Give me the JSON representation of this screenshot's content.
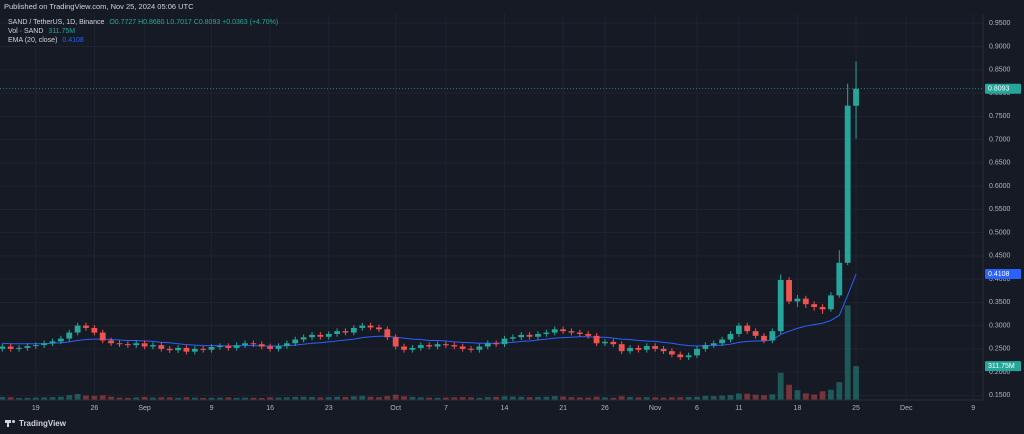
{
  "header": "Published on TradingView.com, Nov 25, 2024 05:06 UTC",
  "footer_brand": "TradingView",
  "chart_data": {
    "type": "candlestick",
    "legend_lines": {
      "symbol": "SAND / TetherUS, 1D, Binance",
      "ohlc": "O0.7727 H0.8680 L0.7017 C0.8093 +0.0363 (+4.70%)",
      "volume_name": "Vol · SAND",
      "volume_value": "311.75M",
      "ema_name": "EMA (20, close)",
      "ema_value": "0.4108"
    },
    "categories": [
      null,
      null,
      null,
      null,
      "19",
      null,
      null,
      null,
      null,
      null,
      null,
      "26",
      null,
      null,
      null,
      null,
      null,
      "Sep",
      null,
      null,
      null,
      null,
      null,
      null,
      null,
      "9",
      null,
      null,
      null,
      null,
      null,
      null,
      "16",
      null,
      null,
      null,
      null,
      null,
      null,
      "23",
      null,
      null,
      null,
      null,
      null,
      null,
      null,
      "Oct",
      null,
      null,
      null,
      null,
      null,
      "7",
      null,
      null,
      null,
      null,
      null,
      null,
      "14",
      null,
      null,
      null,
      null,
      null,
      null,
      "21",
      null,
      null,
      null,
      null,
      "26",
      null,
      null,
      null,
      null,
      null,
      "Nov",
      null,
      null,
      null,
      null,
      "6",
      null,
      null,
      null,
      null,
      "11",
      null,
      null,
      null,
      null,
      null,
      null,
      "18",
      null,
      null,
      null,
      null,
      null,
      null,
      "25",
      null,
      null,
      null,
      null,
      null,
      "Dec",
      null,
      null,
      null,
      null,
      null,
      null,
      null,
      "9"
    ],
    "series": [
      {
        "name": "SAND / TetherUS, 1D, Binance",
        "up_color": "#26a69a",
        "down_color": "#ef5350",
        "open": [
          0.25,
          0.255,
          0.25,
          0.252,
          0.256,
          0.258,
          0.262,
          0.266,
          0.272,
          0.285,
          0.3,
          0.295,
          0.285,
          0.268,
          0.262,
          0.26,
          0.258,
          0.262,
          0.255,
          0.258,
          0.25,
          0.247,
          0.252,
          0.244,
          0.25,
          0.248,
          0.254,
          0.256,
          0.252,
          0.258,
          0.262,
          0.26,
          0.255,
          0.25,
          0.256,
          0.262,
          0.27,
          0.275,
          0.28,
          0.276,
          0.282,
          0.288,
          0.285,
          0.295,
          0.3,
          0.296,
          0.292,
          0.275,
          0.255,
          0.248,
          0.252,
          0.258,
          0.255,
          0.26,
          0.258,
          0.255,
          0.25,
          0.248,
          0.255,
          0.262,
          0.26,
          0.272,
          0.275,
          0.28,
          0.276,
          0.282,
          0.285,
          0.292,
          0.288,
          0.285,
          0.282,
          0.278,
          0.262,
          0.265,
          0.26,
          0.245,
          0.252,
          0.248,
          0.256,
          0.25,
          0.245,
          0.238,
          0.232,
          0.236,
          0.25,
          0.258,
          0.262,
          0.27,
          0.282,
          0.3,
          0.288,
          0.278,
          0.268,
          0.288,
          0.398,
          0.352,
          0.358,
          0.346,
          0.34,
          0.335,
          0.365,
          0.435,
          0.7727,
          null,
          null,
          null,
          null,
          null,
          null,
          null,
          null,
          null,
          null,
          null,
          null,
          null,
          null
        ],
        "high": [
          0.261,
          0.261,
          0.258,
          0.262,
          0.264,
          0.268,
          0.272,
          0.278,
          0.291,
          0.306,
          0.306,
          0.301,
          0.291,
          0.274,
          0.268,
          0.266,
          0.268,
          0.268,
          0.264,
          0.264,
          0.256,
          0.258,
          0.258,
          0.256,
          0.256,
          0.26,
          0.262,
          0.262,
          0.264,
          0.268,
          0.268,
          0.266,
          0.261,
          0.262,
          0.268,
          0.276,
          0.281,
          0.286,
          0.286,
          0.288,
          0.294,
          0.294,
          0.301,
          0.306,
          0.306,
          0.302,
          0.298,
          0.281,
          0.261,
          0.258,
          0.264,
          0.264,
          0.266,
          0.266,
          0.264,
          0.261,
          0.256,
          0.261,
          0.268,
          0.268,
          0.278,
          0.281,
          0.286,
          0.286,
          0.288,
          0.291,
          0.298,
          0.298,
          0.294,
          0.291,
          0.288,
          0.284,
          0.271,
          0.271,
          0.266,
          0.258,
          0.258,
          0.262,
          0.262,
          0.256,
          0.251,
          0.244,
          0.242,
          0.256,
          0.264,
          0.268,
          0.276,
          0.288,
          0.306,
          0.306,
          0.294,
          0.284,
          0.294,
          0.41,
          0.404,
          0.366,
          0.364,
          0.352,
          0.346,
          0.372,
          0.462,
          0.82,
          0.868,
          null,
          null,
          null,
          null,
          null,
          null,
          null,
          null,
          null,
          null,
          null,
          null,
          null,
          null
        ],
        "low": [
          0.244,
          0.244,
          0.244,
          0.246,
          0.25,
          0.252,
          0.256,
          0.26,
          0.266,
          0.279,
          0.289,
          0.279,
          0.262,
          0.256,
          0.254,
          0.252,
          0.252,
          0.249,
          0.249,
          0.244,
          0.241,
          0.241,
          0.238,
          0.238,
          0.242,
          0.242,
          0.248,
          0.246,
          0.246,
          0.252,
          0.254,
          0.249,
          0.244,
          0.244,
          0.25,
          0.256,
          0.264,
          0.269,
          0.27,
          0.27,
          0.276,
          0.279,
          0.279,
          0.289,
          0.29,
          0.286,
          0.269,
          0.249,
          0.242,
          0.242,
          0.246,
          0.249,
          0.249,
          0.252,
          0.249,
          0.244,
          0.242,
          0.242,
          0.249,
          0.254,
          0.254,
          0.266,
          0.269,
          0.27,
          0.27,
          0.276,
          0.279,
          0.282,
          0.279,
          0.276,
          0.272,
          0.256,
          0.256,
          0.254,
          0.239,
          0.239,
          0.242,
          0.242,
          0.244,
          0.239,
          0.232,
          0.226,
          0.226,
          0.23,
          0.244,
          0.252,
          0.256,
          0.264,
          0.276,
          0.282,
          0.272,
          0.262,
          0.262,
          0.282,
          0.346,
          0.34,
          0.338,
          0.332,
          0.325,
          0.33,
          0.36,
          0.43,
          0.7017,
          null,
          null,
          null,
          null,
          null,
          null,
          null,
          null,
          null,
          null,
          null,
          null,
          null,
          null
        ],
        "close": [
          0.255,
          0.25,
          0.252,
          0.256,
          0.258,
          0.262,
          0.266,
          0.272,
          0.285,
          0.3,
          0.295,
          0.285,
          0.268,
          0.262,
          0.26,
          0.258,
          0.262,
          0.255,
          0.258,
          0.25,
          0.247,
          0.252,
          0.244,
          0.25,
          0.248,
          0.254,
          0.256,
          0.252,
          0.258,
          0.262,
          0.26,
          0.255,
          0.25,
          0.256,
          0.262,
          0.27,
          0.275,
          0.28,
          0.276,
          0.282,
          0.288,
          0.285,
          0.295,
          0.3,
          0.296,
          0.292,
          0.275,
          0.255,
          0.248,
          0.252,
          0.258,
          0.255,
          0.26,
          0.258,
          0.255,
          0.25,
          0.248,
          0.255,
          0.262,
          0.26,
          0.272,
          0.275,
          0.28,
          0.276,
          0.282,
          0.285,
          0.292,
          0.288,
          0.285,
          0.282,
          0.278,
          0.262,
          0.265,
          0.26,
          0.245,
          0.252,
          0.248,
          0.256,
          0.25,
          0.245,
          0.238,
          0.232,
          0.236,
          0.25,
          0.258,
          0.262,
          0.27,
          0.282,
          0.3,
          0.288,
          0.278,
          0.268,
          0.288,
          0.398,
          0.352,
          0.358,
          0.346,
          0.34,
          0.335,
          0.365,
          0.435,
          0.773,
          0.8093,
          null,
          null,
          null,
          null,
          null,
          null,
          null,
          null,
          null,
          null,
          null,
          null,
          null,
          null
        ],
        "value_labels": {
          "close": "0.8093"
        }
      },
      {
        "name": "Vol · SAND",
        "axis": "y2",
        "values": [
          28,
          25,
          18,
          20,
          22,
          24,
          26,
          30,
          45,
          55,
          40,
          38,
          42,
          30,
          22,
          20,
          24,
          28,
          22,
          25,
          24,
          20,
          26,
          22,
          18,
          20,
          22,
          24,
          20,
          22,
          20,
          18,
          24,
          22,
          24,
          28,
          30,
          28,
          24,
          26,
          30,
          28,
          34,
          38,
          30,
          26,
          36,
          48,
          34,
          28,
          24,
          22,
          20,
          22,
          24,
          26,
          24,
          20,
          26,
          28,
          34,
          32,
          30,
          26,
          28,
          30,
          36,
          32,
          26,
          24,
          22,
          30,
          24,
          20,
          34,
          28,
          24,
          26,
          24,
          22,
          24,
          26,
          28,
          30,
          38,
          36,
          40,
          45,
          60,
          58,
          48,
          44,
          52,
          250,
          140,
          90,
          62,
          50,
          80,
          95,
          165,
          870,
          311.75,
          null,
          null,
          null,
          null,
          null,
          null,
          null,
          null,
          null,
          null,
          null,
          null,
          null,
          null
        ],
        "value_labels": [
          null,
          null,
          null,
          null,
          null,
          null,
          null,
          null,
          null,
          null,
          null,
          null,
          null,
          null,
          null,
          null,
          null,
          null,
          null,
          null,
          null,
          null,
          null,
          null,
          null,
          null,
          null,
          null,
          null,
          null,
          null,
          null,
          null,
          null,
          null,
          null,
          null,
          null,
          null,
          null,
          null,
          null,
          null,
          null,
          null,
          null,
          null,
          null,
          null,
          null,
          null,
          null,
          null,
          null,
          null,
          null,
          null,
          null,
          null,
          null,
          null,
          null,
          null,
          null,
          null,
          null,
          null,
          null,
          null,
          null,
          null,
          null,
          null,
          null,
          null,
          null,
          null,
          null,
          null,
          null,
          null,
          null,
          null,
          null,
          null,
          null,
          null,
          null,
          null,
          null,
          null,
          null,
          null,
          null,
          null,
          null,
          null,
          null,
          null,
          null,
          null,
          null,
          "311.75M",
          null,
          null,
          null,
          null,
          null,
          null,
          null,
          null,
          null,
          null,
          null,
          null,
          null,
          null
        ]
      },
      {
        "name": "EMA (20, close)",
        "color": "#2962ff",
        "values": [
          0.262,
          0.261,
          0.261,
          0.261,
          0.261,
          0.261,
          0.262,
          0.263,
          0.265,
          0.268,
          0.27,
          0.271,
          0.271,
          0.27,
          0.269,
          0.268,
          0.268,
          0.267,
          0.266,
          0.264,
          0.263,
          0.261,
          0.259,
          0.258,
          0.257,
          0.257,
          0.257,
          0.256,
          0.256,
          0.257,
          0.257,
          0.256,
          0.256,
          0.256,
          0.257,
          0.258,
          0.26,
          0.262,
          0.263,
          0.265,
          0.267,
          0.269,
          0.271,
          0.274,
          0.276,
          0.277,
          0.277,
          0.275,
          0.273,
          0.271,
          0.27,
          0.268,
          0.268,
          0.267,
          0.265,
          0.264,
          0.263,
          0.262,
          0.262,
          0.262,
          0.263,
          0.264,
          0.266,
          0.267,
          0.269,
          0.271,
          0.273,
          0.274,
          0.275,
          0.276,
          0.276,
          0.275,
          0.275,
          0.273,
          0.271,
          0.27,
          0.268,
          0.267,
          0.266,
          0.264,
          0.262,
          0.259,
          0.257,
          0.256,
          0.257,
          0.257,
          0.258,
          0.26,
          0.264,
          0.266,
          0.267,
          0.267,
          0.269,
          0.281,
          0.288,
          0.294,
          0.299,
          0.302,
          0.305,
          0.311,
          0.322,
          0.365,
          0.4108,
          null,
          null,
          null,
          null,
          null,
          null,
          null,
          null,
          null,
          null,
          null,
          null,
          null,
          null
        ],
        "value_labels": {
          "last": "0.4108"
        }
      }
    ],
    "ylim": [
      0.14,
      0.97
    ],
    "yticks": [
      {
        "value": 0.15,
        "label": "0.1500"
      },
      {
        "value": 0.2,
        "label": "0.2000"
      },
      {
        "value": 0.25,
        "label": "0.2500"
      },
      {
        "value": 0.3,
        "label": "0.3000"
      },
      {
        "value": 0.35,
        "label": "0.3500"
      },
      {
        "value": 0.4,
        "label": "0.4000"
      },
      {
        "value": 0.45,
        "label": "0.4500"
      },
      {
        "value": 0.5,
        "label": "0.5000"
      },
      {
        "value": 0.55,
        "label": "0.5500"
      },
      {
        "value": 0.6,
        "label": "0.6000"
      },
      {
        "value": 0.65,
        "label": "0.6500"
      },
      {
        "value": 0.7,
        "label": "0.7000"
      },
      {
        "value": 0.75,
        "label": "0.7500"
      },
      {
        "value": 0.8,
        "label": "0.8000"
      },
      {
        "value": 0.85,
        "label": "0.8500"
      },
      {
        "value": 0.9,
        "label": "0.9000"
      },
      {
        "value": 0.95,
        "label": "0.9500"
      }
    ],
    "y2lim": [
      0,
      3550
    ],
    "grid": true
  }
}
